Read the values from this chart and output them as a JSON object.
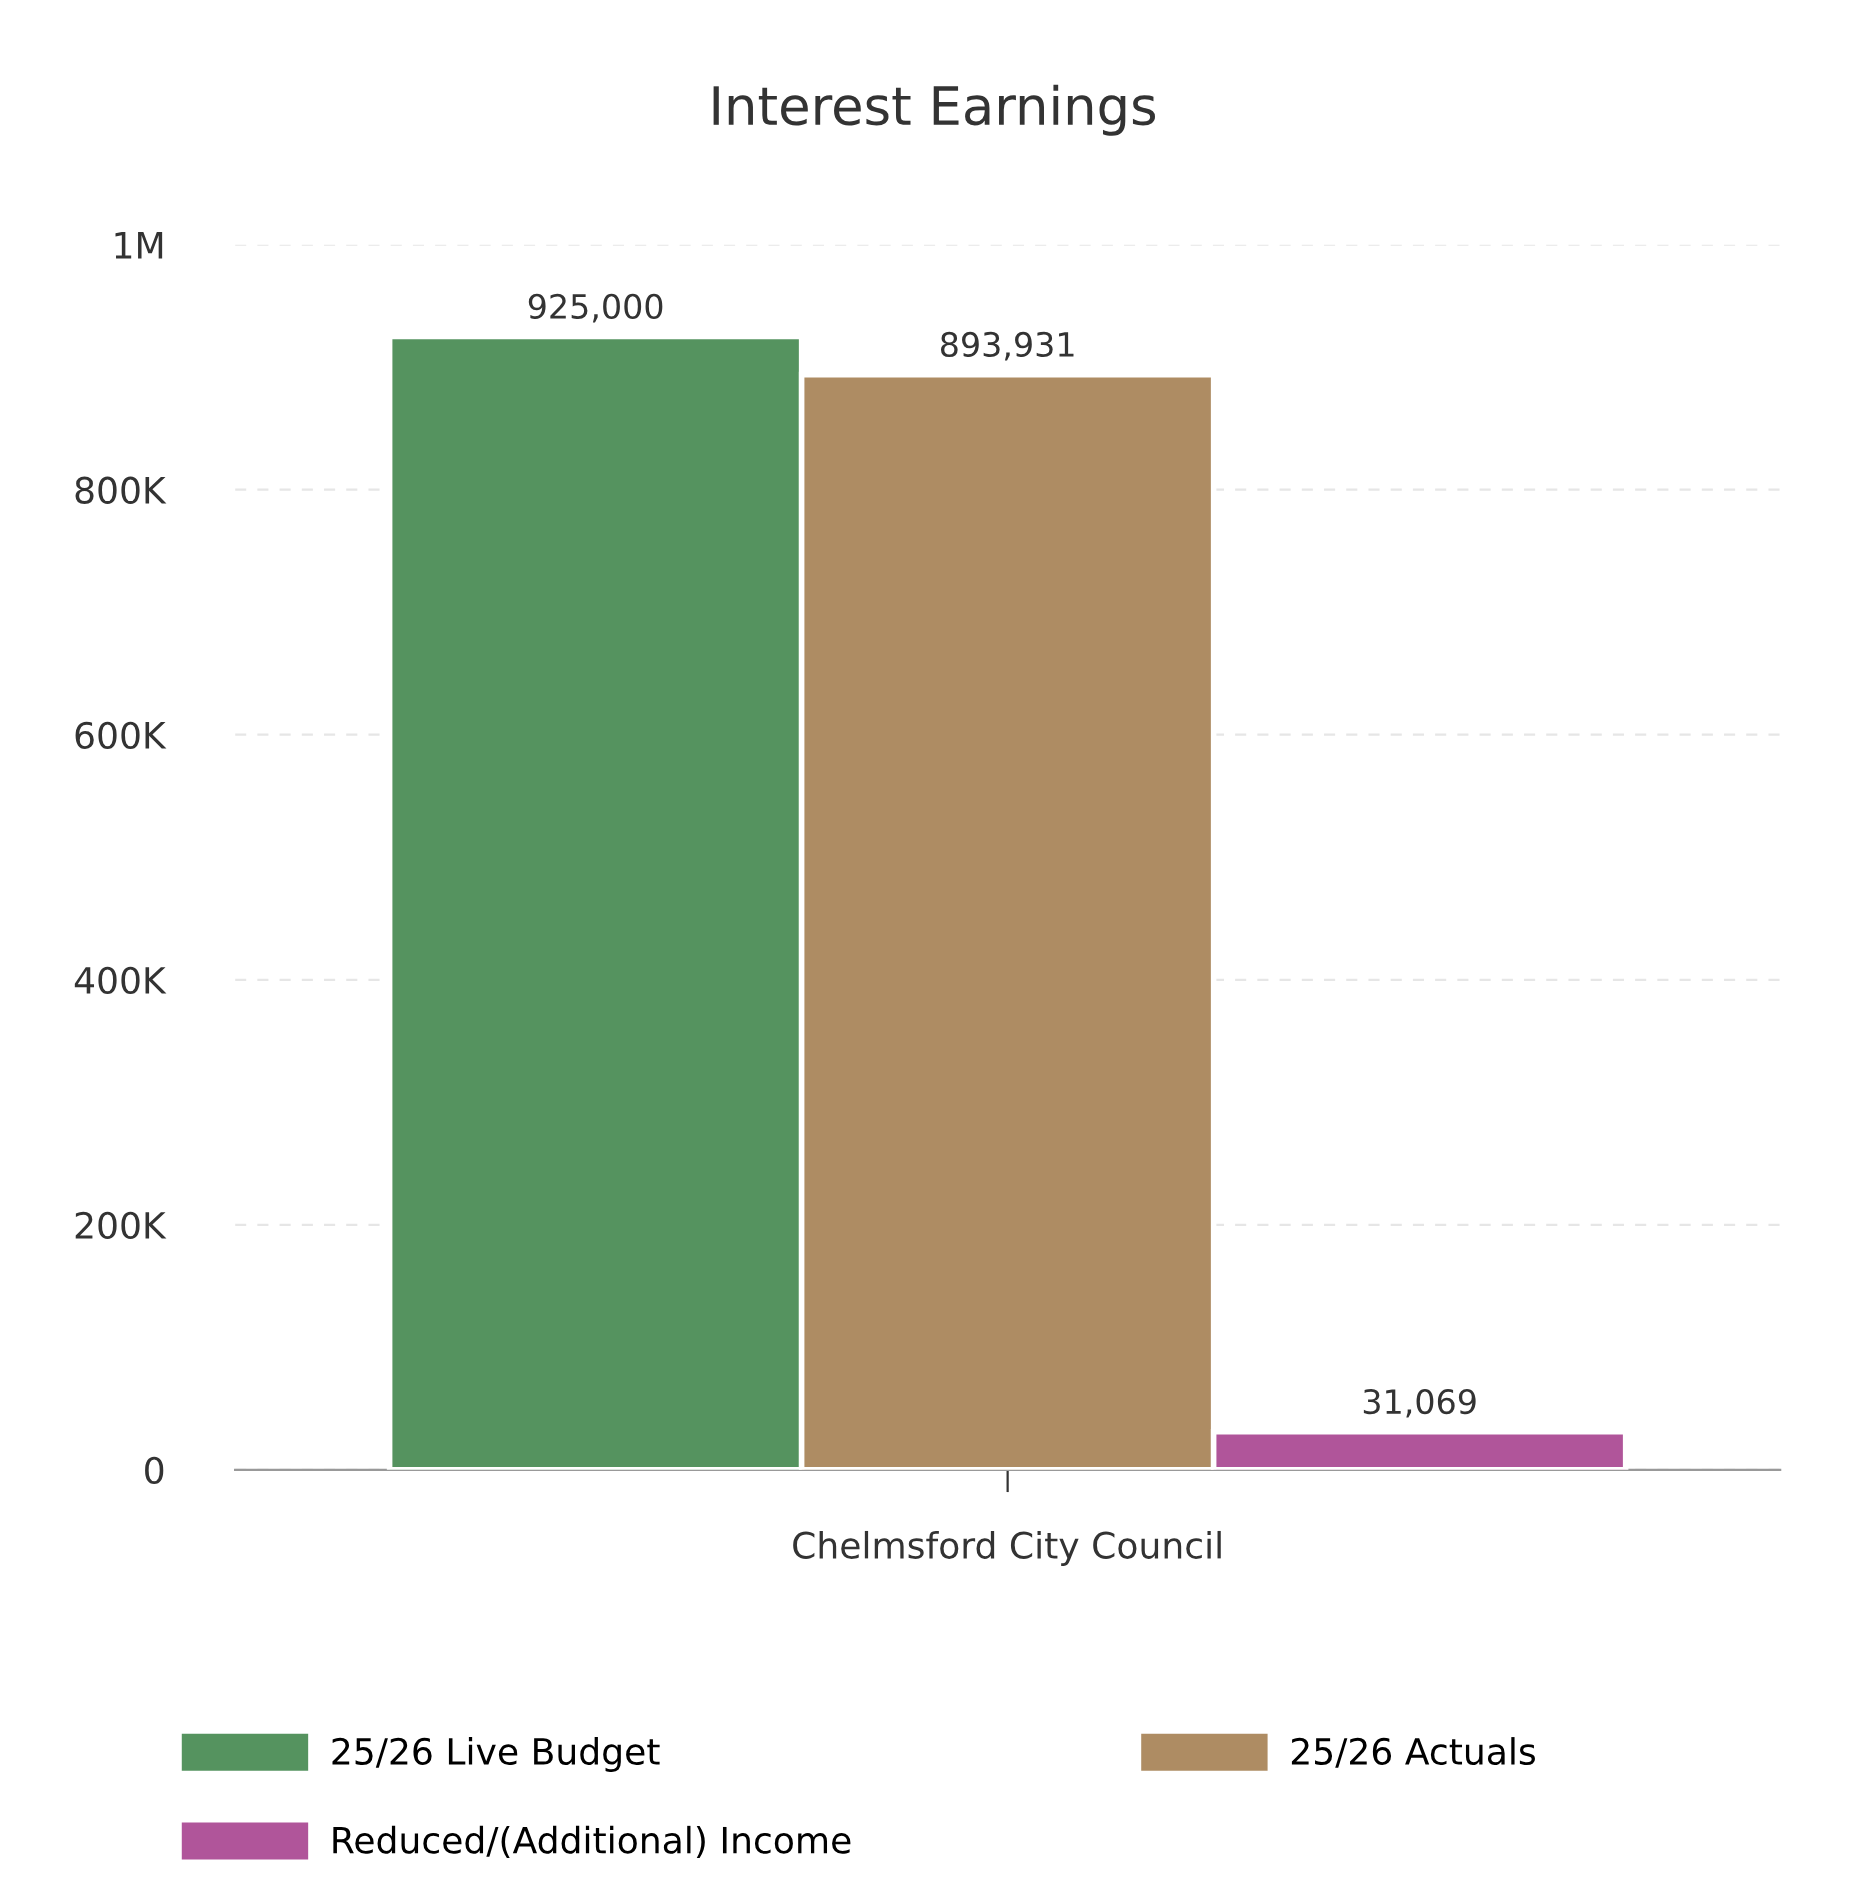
{
  "chart_data": {
    "type": "bar",
    "title": "Interest Earnings",
    "categories": [
      "Chelmsford City Council"
    ],
    "series": [
      {
        "name": "25/26 Live Budget",
        "color": "#55935f",
        "values": [
          925000
        ],
        "value_labels": [
          "925,000"
        ]
      },
      {
        "name": "25/26 Actuals",
        "color": "#ae8c63",
        "values": [
          893931
        ],
        "value_labels": [
          "893,931"
        ]
      },
      {
        "name": "Reduced/(Additional) Income",
        "color": "#b0559a",
        "values": [
          31069
        ],
        "value_labels": [
          "31,069"
        ]
      }
    ],
    "ylim": [
      0,
      1000000
    ],
    "yticks": [
      {
        "value": 0,
        "label": "0"
      },
      {
        "value": 200000,
        "label": "200K"
      },
      {
        "value": 400000,
        "label": "400K"
      },
      {
        "value": 600000,
        "label": "600K"
      },
      {
        "value": 800000,
        "label": "800K"
      },
      {
        "value": 1000000,
        "label": "1M"
      }
    ],
    "grid": "y",
    "legend": "bottom"
  }
}
